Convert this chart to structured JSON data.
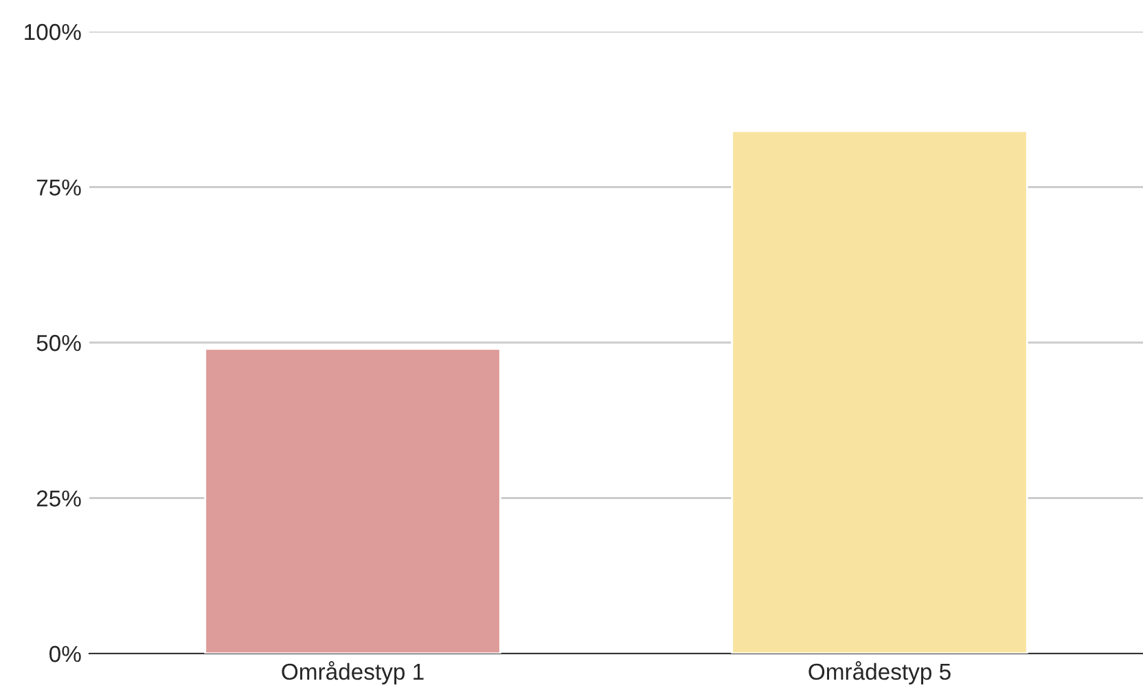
{
  "chart_data": {
    "type": "bar",
    "categories": [
      "Områdestyp 1",
      "Områdestyp 5"
    ],
    "values": [
      49,
      84
    ],
    "colors": [
      "#dd9b99",
      "#f8e3a0"
    ],
    "ylim": [
      0,
      100
    ],
    "yticks": [
      {
        "value": 0,
        "label": "0%"
      },
      {
        "value": 25,
        "label": "25%"
      },
      {
        "value": 50,
        "label": "50%"
      },
      {
        "value": 75,
        "label": "75%"
      },
      {
        "value": 100,
        "label": "100%"
      }
    ],
    "grid": "y"
  }
}
